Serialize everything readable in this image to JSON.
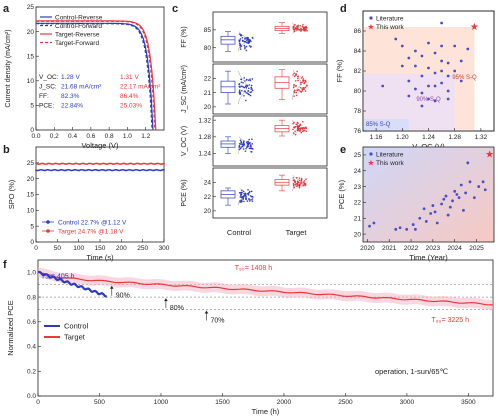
{
  "colors": {
    "control": "#2e3bbf",
    "target": "#e8383b",
    "lit": "#4a4fc4",
    "thiswork": "#e8383b"
  },
  "panel_letters": {
    "a": "a",
    "b": "b",
    "c": "c",
    "d": "d",
    "e": "e",
    "f": "f"
  },
  "chart_data": [
    {
      "id": "a",
      "type": "line",
      "xlabel": "Voltage (V)",
      "ylabel": "Current density (mA/cm²)",
      "xlim": [
        0,
        1.4
      ],
      "ylim": [
        0,
        25
      ],
      "xticks": [
        "0.0",
        "0.2",
        "0.4",
        "0.6",
        "0.8",
        "1.0",
        "1.2"
      ],
      "yticks": [
        "0",
        "5",
        "10",
        "15",
        "20",
        "25"
      ],
      "legend": [
        "Control-Reverse",
        "Control-Forward",
        "Target-Reverse",
        "Target-Forward"
      ],
      "series": [
        {
          "name": "Control-Reverse",
          "voc": 1.28,
          "jsc": 21.68,
          "style": "solid"
        },
        {
          "name": "Control-Forward",
          "voc": 1.27,
          "jsc": 21.6,
          "style": "dashed"
        },
        {
          "name": "Target-Reverse",
          "voc": 1.31,
          "jsc": 22.17,
          "style": "solid"
        },
        {
          "name": "Target-Forward",
          "voc": 1.3,
          "jsc": 22.1,
          "style": "dashed"
        }
      ],
      "params": {
        "labels": [
          "V_OC:",
          "J_SC:",
          "FF:",
          "PCE:"
        ],
        "control": [
          "1.28 V",
          "21.68 mA/cm²",
          "82.3%",
          "22.84%"
        ],
        "target": [
          "1.31 V",
          "22.17 mA/cm²",
          "86.4%",
          "25.03%"
        ]
      }
    },
    {
      "id": "b",
      "type": "line",
      "xlabel": "Time (s)",
      "ylabel": "SPO (%)",
      "xlim": [
        0,
        300
      ],
      "ylim": [
        0,
        30
      ],
      "xticks": [
        "0",
        "50",
        "100",
        "150",
        "200",
        "250",
        "300"
      ],
      "yticks": [
        "0",
        "5",
        "10",
        "15",
        "20",
        "25"
      ],
      "series": [
        {
          "name": "Control 22.7% @1.12 V",
          "y": 22.7
        },
        {
          "name": "Target 24.7% @1.18 V",
          "y": 24.7
        }
      ]
    },
    {
      "id": "c",
      "type": "box",
      "categories": [
        "Control",
        "Target"
      ],
      "panels": [
        {
          "ylabel": "FF (%)",
          "ylim": [
            76,
            90
          ],
          "yticks": [
            "80",
            "85"
          ],
          "control": {
            "q1": 81,
            "med": 82.2,
            "q3": 83.2,
            "min": 79,
            "max": 84.5
          },
          "target": {
            "q1": 84.8,
            "med": 85.4,
            "q3": 86,
            "min": 84,
            "max": 87
          }
        },
        {
          "ylabel": "J_SC (mA/cm²)",
          "ylim": [
            19.5,
            23
          ],
          "yticks": [
            "20",
            "21",
            "22"
          ],
          "control": {
            "q1": 21,
            "med": 21.4,
            "q3": 21.8,
            "min": 20.2,
            "max": 22.5
          },
          "target": {
            "q1": 21.3,
            "med": 21.7,
            "q3": 22.1,
            "min": 20.5,
            "max": 22.6
          }
        },
        {
          "ylabel": "V_OC (V)",
          "ylim": [
            1.21,
            1.33
          ],
          "yticks": [
            "1.24",
            "1.28",
            "1.32"
          ],
          "control": {
            "q1": 1.255,
            "med": 1.263,
            "q3": 1.27,
            "min": 1.24,
            "max": 1.28
          },
          "target": {
            "q1": 1.292,
            "med": 1.3,
            "q3": 1.307,
            "min": 1.282,
            "max": 1.32
          }
        },
        {
          "ylabel": "PCE (%)",
          "ylim": [
            19,
            26
          ],
          "yticks": [
            "20",
            "22",
            "24"
          ],
          "control": {
            "q1": 21.8,
            "med": 22.3,
            "q3": 22.8,
            "min": 20.8,
            "max": 23.2
          },
          "target": {
            "q1": 23.6,
            "med": 24,
            "q3": 24.4,
            "min": 22.8,
            "max": 25
          }
        }
      ]
    },
    {
      "id": "d",
      "type": "scatter",
      "xlabel": "V_OC (V)",
      "ylabel": "FF (%)",
      "xlim": [
        1.14,
        1.34
      ],
      "ylim": [
        76,
        88
      ],
      "xticks": [
        "1.16",
        "1.20",
        "1.24",
        "1.28",
        "1.32"
      ],
      "yticks": [
        "76",
        "78",
        "80",
        "82",
        "84",
        "86"
      ],
      "legend": [
        "Literature",
        "This work"
      ],
      "annotations": [
        "85% S-Q",
        "90% S-Q",
        "95% S-Q"
      ],
      "this_work": {
        "x": 1.31,
        "y": 86.4
      },
      "literature": [
        [
          1.17,
          80.5
        ],
        [
          1.19,
          85.2
        ],
        [
          1.2,
          84.5
        ],
        [
          1.2,
          82.5
        ],
        [
          1.21,
          79.5
        ],
        [
          1.21,
          81
        ],
        [
          1.22,
          84
        ],
        [
          1.22,
          82.5
        ],
        [
          1.22,
          80.2
        ],
        [
          1.23,
          83.5
        ],
        [
          1.23,
          81.5
        ],
        [
          1.23,
          79.8
        ],
        [
          1.23,
          78.5
        ],
        [
          1.24,
          84.8
        ],
        [
          1.24,
          82.3
        ],
        [
          1.24,
          80.5
        ],
        [
          1.24,
          79.2
        ],
        [
          1.25,
          83.8
        ],
        [
          1.25,
          81.8
        ],
        [
          1.25,
          80.5
        ],
        [
          1.25,
          79
        ],
        [
          1.26,
          84.5
        ],
        [
          1.26,
          83
        ],
        [
          1.26,
          82
        ],
        [
          1.26,
          80.8
        ],
        [
          1.27,
          82.8
        ],
        [
          1.27,
          81.5
        ],
        [
          1.27,
          80
        ],
        [
          1.27,
          79.2
        ],
        [
          1.28,
          84.5
        ],
        [
          1.28,
          82
        ],
        [
          1.29,
          83
        ],
        [
          1.29,
          81
        ],
        [
          1.3,
          84.2
        ],
        [
          1.26,
          86.8
        ],
        [
          1.21,
          83.3
        ]
      ]
    },
    {
      "id": "e",
      "type": "scatter",
      "xlabel": "Time (Year)",
      "ylabel": "PCE (%)",
      "xlim": [
        2019.8,
        2025.8
      ],
      "ylim": [
        19.5,
        25.5
      ],
      "xticks": [
        "2020",
        "2021",
        "2022",
        "2023",
        "2024",
        "2025"
      ],
      "yticks": [
        "20",
        "21",
        "22",
        "23",
        "24",
        "25"
      ],
      "legend": [
        "Literature",
        "This work"
      ],
      "this_work": {
        "x": 2025.6,
        "y": 25.03
      },
      "literature": [
        [
          2020.1,
          20.5
        ],
        [
          2020.3,
          20.7
        ],
        [
          2021.3,
          20.3
        ],
        [
          2021.5,
          20.4
        ],
        [
          2021.8,
          20.3
        ],
        [
          2022.1,
          20.6
        ],
        [
          2022.2,
          20.3
        ],
        [
          2022.4,
          21
        ],
        [
          2022.6,
          21.6
        ],
        [
          2022.7,
          20.8
        ],
        [
          2022.9,
          21.3
        ],
        [
          2023,
          21.8
        ],
        [
          2023.1,
          21.4
        ],
        [
          2023.2,
          20.7
        ],
        [
          2023.4,
          21.9
        ],
        [
          2023.5,
          22.2
        ],
        [
          2023.6,
          22.4
        ],
        [
          2023.7,
          21.2
        ],
        [
          2023.8,
          21.7
        ],
        [
          2023.9,
          22.1
        ],
        [
          2024,
          22.7
        ],
        [
          2024.1,
          22.5
        ],
        [
          2024.2,
          22.3
        ],
        [
          2024.3,
          23.1
        ],
        [
          2024.5,
          22.6
        ],
        [
          2024.7,
          23.3
        ],
        [
          2024.9,
          22.3
        ],
        [
          2025.1,
          23
        ],
        [
          2025.3,
          23.3
        ],
        [
          2025.4,
          22.8
        ],
        [
          2024.6,
          24.5
        ],
        [
          2024.4,
          21.5
        ]
      ]
    },
    {
      "id": "f",
      "type": "line",
      "xlabel": "Time (h)",
      "ylabel": "Normalized PCE",
      "xlim": [
        0,
        3700
      ],
      "ylim": [
        0,
        1.1
      ],
      "xticks": [
        "0",
        "500",
        "1000",
        "1500",
        "2000",
        "2500",
        "3000",
        "3500"
      ],
      "yticks": [
        "0.0",
        "0.2",
        "0.4",
        "0.6",
        "0.8",
        "1.0"
      ],
      "legend": [
        "Control",
        "Target"
      ],
      "note": "operation, 1-sun/65℃",
      "series": [
        {
          "name": "Control",
          "t_end": 560,
          "y_end": 0.81
        },
        {
          "name": "Target",
          "t_end": 3700,
          "y_end": 0.74
        }
      ],
      "refs": [
        {
          "label": "90%",
          "y": 0.9
        },
        {
          "label": "80%",
          "y": 0.8
        },
        {
          "label": "70%",
          "y": 0.7
        }
      ],
      "annotations": [
        "T₉₀= 405 h",
        "T₉₀= 1408 h",
        "T₈₀= 3225 h"
      ]
    }
  ]
}
